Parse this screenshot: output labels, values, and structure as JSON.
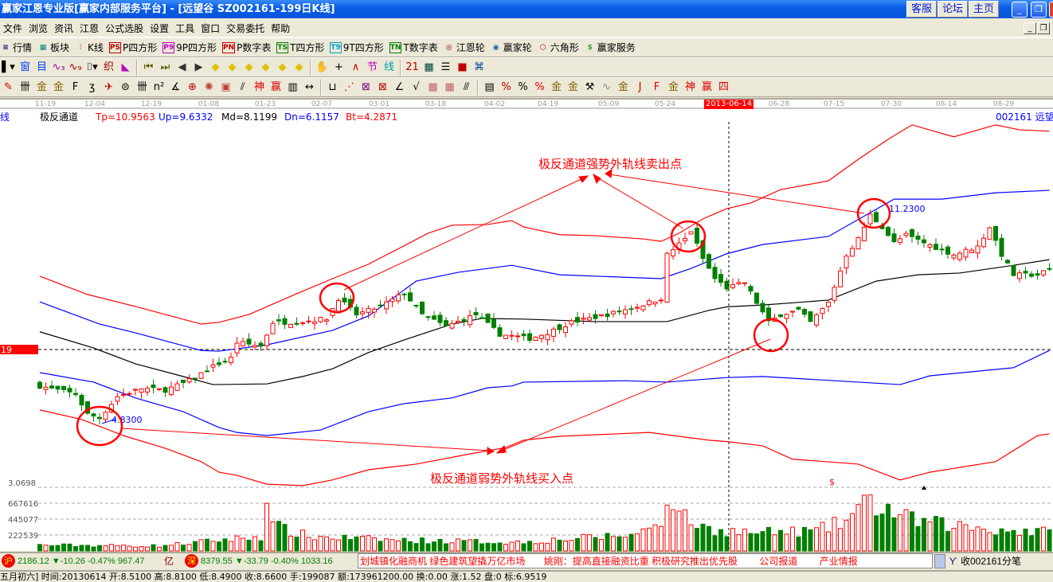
{
  "window": {
    "title": "赢家江恩专业版[赢家内部服务平台] - [远望谷   SZ002161-199日K线]",
    "links": [
      "客服",
      "论坛",
      "主页"
    ],
    "controls": {
      "minimize": "_",
      "restore": "❐",
      "close": "✕"
    }
  },
  "menu": [
    "文件",
    "浏览",
    "资讯",
    "江恩",
    "公式选股",
    "设置",
    "工具",
    "窗口",
    "交易委托",
    "帮助"
  ],
  "toolbar1": [
    {
      "label": "行情",
      "icon": "list-icon",
      "glyph": "≡",
      "color": "#000080"
    },
    {
      "label": "板块",
      "icon": "blocks-icon",
      "glyph": "▦",
      "color": "#008080"
    },
    {
      "label": "K线",
      "icon": "kline-icon",
      "glyph": "⫶",
      "color": "#e00000"
    },
    {
      "label": "P四方形",
      "icon": "ps-icon",
      "glyph": "PS",
      "color": "#c00000"
    },
    {
      "label": "9P四方形",
      "icon": "p9-icon",
      "glyph": "P9",
      "color": "#c000c0"
    },
    {
      "label": "P数字表",
      "icon": "pn-icon",
      "glyph": "PN",
      "color": "#c00000"
    },
    {
      "label": "T四方形",
      "icon": "ts-icon",
      "glyph": "TS",
      "color": "#008000"
    },
    {
      "label": "9T四方形",
      "icon": "t9-icon",
      "glyph": "T9",
      "color": "#00a0c0"
    },
    {
      "label": "T数字表",
      "icon": "tn-icon",
      "glyph": "TN",
      "color": "#008000"
    },
    {
      "label": "江恩轮",
      "icon": "gann-wheel-icon",
      "glyph": "◎",
      "color": "#800000"
    },
    {
      "label": "赢家轮",
      "icon": "winner-wheel-icon",
      "glyph": "◉",
      "color": "#2060a0"
    },
    {
      "label": "六角形",
      "icon": "hexagon-icon",
      "glyph": "⬡",
      "color": "#c00000"
    },
    {
      "label": "赢家服务",
      "icon": "dollar-icon",
      "glyph": "$",
      "color": "#40a040"
    }
  ],
  "toolbar2": [
    {
      "name": "bar-type-icon",
      "glyph": "▌▾",
      "color": "#000"
    },
    {
      "name": "window-icon",
      "glyph": "窗",
      "color": "#0040ff"
    },
    {
      "name": "list-doc-icon",
      "glyph": "目",
      "color": "#0040ff"
    },
    {
      "name": "indicator-3-icon",
      "glyph": "∿₃",
      "color": "#a000a0"
    },
    {
      "name": "indicator-9-icon",
      "glyph": "∿₉",
      "color": "#a00000"
    },
    {
      "name": "candle-type-icon",
      "glyph": "⌷▾",
      "color": "#000"
    },
    {
      "name": "weave-icon",
      "glyph": "织",
      "color": "#a00000"
    },
    {
      "name": "flag-chart-icon",
      "glyph": "◣",
      "color": "#c000c0"
    },
    {
      "name": "first-icon",
      "glyph": "⏮",
      "color": "#606000"
    },
    {
      "name": "last-icon",
      "glyph": "⏭",
      "color": "#606000"
    },
    {
      "name": "left-icon",
      "glyph": "◀",
      "color": "#333"
    },
    {
      "name": "right-icon",
      "glyph": "▶",
      "color": "#333"
    },
    {
      "name": "move-left-icon",
      "glyph": "◆",
      "color": "#e0c000"
    },
    {
      "name": "move-right-icon",
      "glyph": "◆",
      "color": "#e0c000"
    },
    {
      "name": "expand-icon",
      "glyph": "◆",
      "color": "#e0c000"
    },
    {
      "name": "shrink-icon",
      "glyph": "◆",
      "color": "#e0c000"
    },
    {
      "name": "zoom-in-icon",
      "glyph": "◆",
      "color": "#e0c000"
    },
    {
      "name": "zoom-out-icon",
      "glyph": "◆",
      "color": "#e0c000"
    },
    {
      "name": "hand-icon",
      "glyph": "✋",
      "color": "#000"
    },
    {
      "name": "crosshair-icon",
      "glyph": "+",
      "color": "#000"
    },
    {
      "name": "draw-icon",
      "glyph": "∧",
      "color": "#c00000"
    },
    {
      "name": "node-icon",
      "glyph": "节",
      "color": "#c000c0"
    },
    {
      "name": "line-icon",
      "glyph": "线",
      "color": "#00a0a0"
    },
    {
      "name": "calendar-icon",
      "glyph": "21",
      "color": "#c00000"
    },
    {
      "name": "calculator-icon",
      "glyph": "▦",
      "color": "#004040"
    },
    {
      "name": "notes-icon",
      "glyph": "☰",
      "color": "#000"
    },
    {
      "name": "save-icon",
      "glyph": "■",
      "color": "#c00000"
    },
    {
      "name": "network-icon",
      "glyph": "⌘",
      "color": "#0040a0"
    }
  ],
  "toolbar3": [
    {
      "name": "pen-icon",
      "glyph": "✎",
      "color": "#c00000"
    },
    {
      "name": "grid-lines-icon",
      "glyph": "卌",
      "color": "#000"
    },
    {
      "name": "gold-lines-icon",
      "glyph": "金",
      "color": "#806000"
    },
    {
      "name": "gold-lines-2-icon",
      "glyph": "金",
      "color": "#806000"
    },
    {
      "name": "fib-icon",
      "glyph": "F",
      "color": "#000"
    },
    {
      "name": "spiral-icon",
      "glyph": "ʒ",
      "color": "#000"
    },
    {
      "name": "rocket-icon",
      "glyph": "✈",
      "color": "#c00000"
    },
    {
      "name": "circle-icon",
      "glyph": "⊜",
      "color": "#000"
    },
    {
      "name": "cycle-icon",
      "glyph": "卌",
      "color": "#000"
    },
    {
      "name": "n-square-icon",
      "glyph": "n²",
      "color": "#000"
    },
    {
      "name": "angle-icon",
      "glyph": "∡",
      "color": "#000"
    },
    {
      "name": "target-icon",
      "glyph": "⊕",
      "color": "#c00000"
    },
    {
      "name": "web-icon",
      "glyph": "✺",
      "color": "#c04040"
    },
    {
      "name": "square-web-icon",
      "glyph": "▣",
      "color": "#c04040"
    },
    {
      "name": "parallel-icon",
      "glyph": "⫽",
      "color": "#000"
    },
    {
      "name": "god-icon",
      "glyph": "神",
      "color": "#e00000"
    },
    {
      "name": "win-icon",
      "glyph": "赢",
      "color": "#e00000"
    },
    {
      "name": "ruler-icon",
      "glyph": "▥",
      "color": "#000"
    },
    {
      "name": "measure-icon",
      "glyph": "↔",
      "color": "#000"
    },
    {
      "name": "box-icon",
      "glyph": "⊔",
      "color": "#000"
    },
    {
      "name": "fan-icon",
      "glyph": "⋰",
      "color": "#c00000"
    },
    {
      "name": "box-fan-icon",
      "glyph": "⊠",
      "color": "#800080"
    },
    {
      "name": "box-fan-2-icon",
      "glyph": "⊠",
      "color": "#c00000"
    },
    {
      "name": "speed-line-icon",
      "glyph": "∠",
      "color": "#000"
    },
    {
      "name": "wave-icon",
      "glyph": "√",
      "color": "#000"
    },
    {
      "name": "grid-icon",
      "glyph": "▦",
      "color": "#c06060"
    },
    {
      "name": "grid-2-icon",
      "glyph": "▦",
      "color": "#c06060"
    },
    {
      "name": "channel-icon",
      "glyph": "⫻",
      "color": "#000"
    },
    {
      "name": "table-icon",
      "glyph": "▤",
      "color": "#000"
    },
    {
      "name": "percent-line-icon",
      "glyph": "%",
      "color": "#c00000"
    },
    {
      "name": "percent-icon",
      "glyph": "%",
      "color": "#000"
    },
    {
      "name": "percent-lines-icon",
      "glyph": "%",
      "color": "#e00000"
    },
    {
      "name": "gold-circle-icon",
      "glyph": "金",
      "color": "#806000"
    },
    {
      "name": "gold-lines-3-icon",
      "glyph": "金",
      "color": "#806000"
    },
    {
      "name": "drill-icon",
      "glyph": "⚒",
      "color": "#000"
    },
    {
      "name": "wave-2-icon",
      "glyph": "∿",
      "color": "#888"
    },
    {
      "name": "gold-lines-4-icon",
      "glyph": "金",
      "color": "#806000"
    },
    {
      "name": "j-angle-icon",
      "glyph": "J",
      "color": "#c00000"
    },
    {
      "name": "f-angle-icon",
      "glyph": "F",
      "color": "#e00000"
    },
    {
      "name": "gold-angle-icon",
      "glyph": "金",
      "color": "#806000"
    },
    {
      "name": "god-angle-icon",
      "glyph": "神",
      "color": "#e00000"
    },
    {
      "name": "win-angle-icon",
      "glyph": "赢",
      "color": "#e00000"
    },
    {
      "name": "four-angle-icon",
      "glyph": "四",
      "color": "#e00000"
    }
  ],
  "date_axis": {
    "labels": [
      "11-19",
      "12-04",
      "12-19",
      "01-08",
      "01-23",
      "02-07",
      "03-01",
      "03-18",
      "04-02",
      "04-19",
      "05-09",
      "05-24",
      "06-28",
      "07-15",
      "07-30",
      "08-14",
      "08-29"
    ],
    "cursor_date": "2013-06-14"
  },
  "indicator": {
    "name": "极反通道",
    "tp": "Tp=10.9563",
    "up": "Up=9.6332",
    "md": "Md=8.1199",
    "dn": "Dn=6.1157",
    "bt": "Bt=4.2871",
    "stock_label": "002161 远望",
    "side_label": "线",
    "colors": {
      "tp": "#ff0000",
      "up": "#0000ff",
      "md": "#000000",
      "dn": "#0000ff",
      "bt": "#ff0000"
    }
  },
  "chart_data": {
    "type": "candlestick",
    "reference_line": {
      "value": 6.9519,
      "label": "19"
    },
    "price_axis_label": "3.0698",
    "volume_axis_labels": [
      "667616",
      "445077",
      "222539"
    ],
    "low_marker": "4.8300",
    "high_marker": "11.2300",
    "close_path": [
      [
        0,
        5.87
      ],
      [
        6,
        5.64
      ],
      [
        8,
        5.07
      ],
      [
        10,
        4.96
      ],
      [
        13,
        5.57
      ],
      [
        17,
        5.8
      ],
      [
        21,
        5.75
      ],
      [
        25,
        6.02
      ],
      [
        29,
        6.43
      ],
      [
        32,
        6.66
      ],
      [
        33,
        7.11
      ],
      [
        37,
        7.0
      ],
      [
        39,
        7.68
      ],
      [
        43,
        7.68
      ],
      [
        48,
        7.79
      ],
      [
        50,
        8.36
      ],
      [
        53,
        7.9
      ],
      [
        57,
        8.13
      ],
      [
        61,
        8.51
      ],
      [
        64,
        7.9
      ],
      [
        68,
        7.56
      ],
      [
        73,
        7.9
      ],
      [
        77,
        7.34
      ],
      [
        82,
        7.22
      ],
      [
        85,
        7.38
      ],
      [
        89,
        7.68
      ],
      [
        95,
        7.9
      ],
      [
        100,
        8.13
      ],
      [
        104,
        8.36
      ],
      [
        105,
        9.6
      ],
      [
        108,
        10.05
      ],
      [
        109,
        10.28
      ],
      [
        111,
        9.49
      ],
      [
        113,
        8.92
      ],
      [
        115,
        8.66
      ],
      [
        118,
        8.81
      ],
      [
        120,
        8.24
      ],
      [
        122,
        7.68
      ],
      [
        124,
        7.9
      ],
      [
        127,
        8.02
      ],
      [
        129,
        7.68
      ],
      [
        132,
        8.24
      ],
      [
        135,
        9.6
      ],
      [
        137,
        10.05
      ],
      [
        139,
        10.73
      ],
      [
        141,
        10.39
      ],
      [
        143,
        9.94
      ],
      [
        145,
        10.16
      ],
      [
        148,
        9.94
      ],
      [
        153,
        9.6
      ],
      [
        157,
        9.83
      ],
      [
        159,
        10.39
      ],
      [
        161,
        9.6
      ],
      [
        163,
        9.03
      ],
      [
        167,
        9.03
      ],
      [
        170,
        9.26
      ]
    ],
    "bands": {
      "tp": [
        [
          0,
          8.99
        ],
        [
          8,
          8.47
        ],
        [
          16,
          8.13
        ],
        [
          27,
          7.63
        ],
        [
          30,
          7.68
        ],
        [
          35,
          7.9
        ],
        [
          42,
          8.42
        ],
        [
          49,
          8.92
        ],
        [
          55,
          9.33
        ],
        [
          65,
          10.21
        ],
        [
          69,
          10.44
        ],
        [
          75,
          10.46
        ],
        [
          79,
          10.57
        ],
        [
          81,
          10.39
        ],
        [
          87,
          10.17
        ],
        [
          93,
          10.14
        ],
        [
          101,
          10.05
        ],
        [
          104,
          9.98
        ],
        [
          107,
          10.21
        ],
        [
          111,
          10.62
        ],
        [
          115,
          10.91
        ],
        [
          119,
          11.07
        ],
        [
          124,
          11.45
        ],
        [
          132,
          11.7
        ],
        [
          137,
          12.31
        ],
        [
          142,
          12.88
        ],
        [
          146,
          13.29
        ],
        [
          153,
          12.95
        ],
        [
          160,
          13.29
        ],
        [
          164,
          13.15
        ],
        [
          169,
          13.11
        ]
      ],
      "up": [
        [
          0,
          8.26
        ],
        [
          10,
          7.63
        ],
        [
          16,
          7.38
        ],
        [
          27,
          6.88
        ],
        [
          30,
          6.86
        ],
        [
          38,
          7.04
        ],
        [
          49,
          7.45
        ],
        [
          55,
          7.86
        ],
        [
          63,
          8.85
        ],
        [
          70,
          9.1
        ],
        [
          79,
          9.3
        ],
        [
          87,
          9.03
        ],
        [
          104,
          8.92
        ],
        [
          109,
          9.21
        ],
        [
          115,
          9.63
        ],
        [
          121,
          9.89
        ],
        [
          132,
          10.12
        ],
        [
          143,
          11.18
        ],
        [
          151,
          11.18
        ],
        [
          160,
          11.36
        ],
        [
          169,
          11.43
        ]
      ],
      "md": [
        [
          0,
          7.41
        ],
        [
          9,
          6.95
        ],
        [
          16,
          6.5
        ],
        [
          24,
          6.14
        ],
        [
          29,
          5.91
        ],
        [
          38,
          5.93
        ],
        [
          44,
          6.14
        ],
        [
          49,
          6.36
        ],
        [
          55,
          6.82
        ],
        [
          61,
          7.18
        ],
        [
          69,
          7.63
        ],
        [
          74,
          7.79
        ],
        [
          81,
          7.77
        ],
        [
          93,
          7.7
        ],
        [
          105,
          7.7
        ],
        [
          112,
          8.02
        ],
        [
          115,
          8.12
        ],
        [
          121,
          8.17
        ],
        [
          132,
          8.31
        ],
        [
          140,
          8.85
        ],
        [
          147,
          9.03
        ],
        [
          154,
          9.08
        ],
        [
          163,
          9.3
        ],
        [
          169,
          9.46
        ]
      ],
      "dn": [
        [
          0,
          6.25
        ],
        [
          9,
          5.98
        ],
        [
          16,
          5.53
        ],
        [
          24,
          5.14
        ],
        [
          30,
          4.69
        ],
        [
          33,
          4.55
        ],
        [
          38,
          4.46
        ],
        [
          47,
          4.62
        ],
        [
          55,
          5.14
        ],
        [
          61,
          5.37
        ],
        [
          69,
          5.53
        ],
        [
          75,
          5.82
        ],
        [
          79,
          5.87
        ],
        [
          81,
          5.98
        ],
        [
          98,
          6.02
        ],
        [
          105,
          5.98
        ],
        [
          115,
          6.11
        ],
        [
          121,
          6.14
        ],
        [
          137,
          5.98
        ],
        [
          144,
          5.91
        ],
        [
          149,
          6.16
        ],
        [
          163,
          6.39
        ],
        [
          169,
          6.88
        ]
      ],
      "bt": [
        [
          0,
          5.19
        ],
        [
          7,
          4.92
        ],
        [
          14,
          4.46
        ],
        [
          21,
          4.1
        ],
        [
          27,
          3.72
        ],
        [
          30,
          3.42
        ],
        [
          33,
          3.33
        ],
        [
          38,
          3.08
        ],
        [
          44,
          3.04
        ],
        [
          49,
          3.2
        ],
        [
          55,
          3.49
        ],
        [
          63,
          3.65
        ],
        [
          72,
          3.94
        ],
        [
          78,
          4.12
        ],
        [
          81,
          4.33
        ],
        [
          87,
          4.44
        ],
        [
          102,
          4.55
        ],
        [
          112,
          4.33
        ],
        [
          115,
          4.29
        ],
        [
          121,
          4.17
        ],
        [
          126,
          3.79
        ],
        [
          137,
          3.65
        ],
        [
          144,
          3.2
        ],
        [
          149,
          3.42
        ],
        [
          160,
          3.72
        ],
        [
          167,
          4.46
        ],
        [
          169,
          4.51
        ]
      ]
    },
    "volume_profile": [
      [
        0,
        80000
      ],
      [
        20,
        70000
      ],
      [
        30,
        150000
      ],
      [
        37,
        200000
      ],
      [
        38,
        760000
      ],
      [
        39,
        350000
      ],
      [
        45,
        200000
      ],
      [
        60,
        150000
      ],
      [
        80,
        120000
      ],
      [
        100,
        230000
      ],
      [
        104,
        450000
      ],
      [
        105,
        780000
      ],
      [
        106,
        500000
      ],
      [
        107,
        720000
      ],
      [
        108,
        450000
      ],
      [
        112,
        300000
      ],
      [
        120,
        250000
      ],
      [
        130,
        280000
      ],
      [
        135,
        420000
      ],
      [
        137,
        600000
      ],
      [
        139,
        650000
      ],
      [
        141,
        620000
      ],
      [
        145,
        450000
      ],
      [
        150,
        380000
      ],
      [
        160,
        300000
      ],
      [
        170,
        250000
      ]
    ]
  },
  "annotations": {
    "sell_text": "极反通道强势外轨线卖出点",
    "buy_text": "极反通道弱势外轨线买入点",
    "dollar_marker": "$"
  },
  "ticker": {
    "sh_badge": "沪",
    "sh_quote": "2186.12 ▼-10.26 -0.47% 967.47",
    "sh_unit": "亿",
    "sz_badge": "深",
    "sz_quote": "8379.55 ▼-33.79 -0.40% 1033.16",
    "news": [
      "划城镇化融商机  绿色建筑望撬万亿市场",
      "姚刚：提高直接融资比重  积极研究推出优先股",
      "公司报道",
      "产业情报"
    ],
    "tick_label": "收002161分笔"
  },
  "status": "五月初六] 时间:20130614  开:8.5100  高:8.8100  低:8.4900  收:8.6600  手:199087  额:173961200.00  换:0.00  涨:1.52  盘:0  标:6.9519"
}
